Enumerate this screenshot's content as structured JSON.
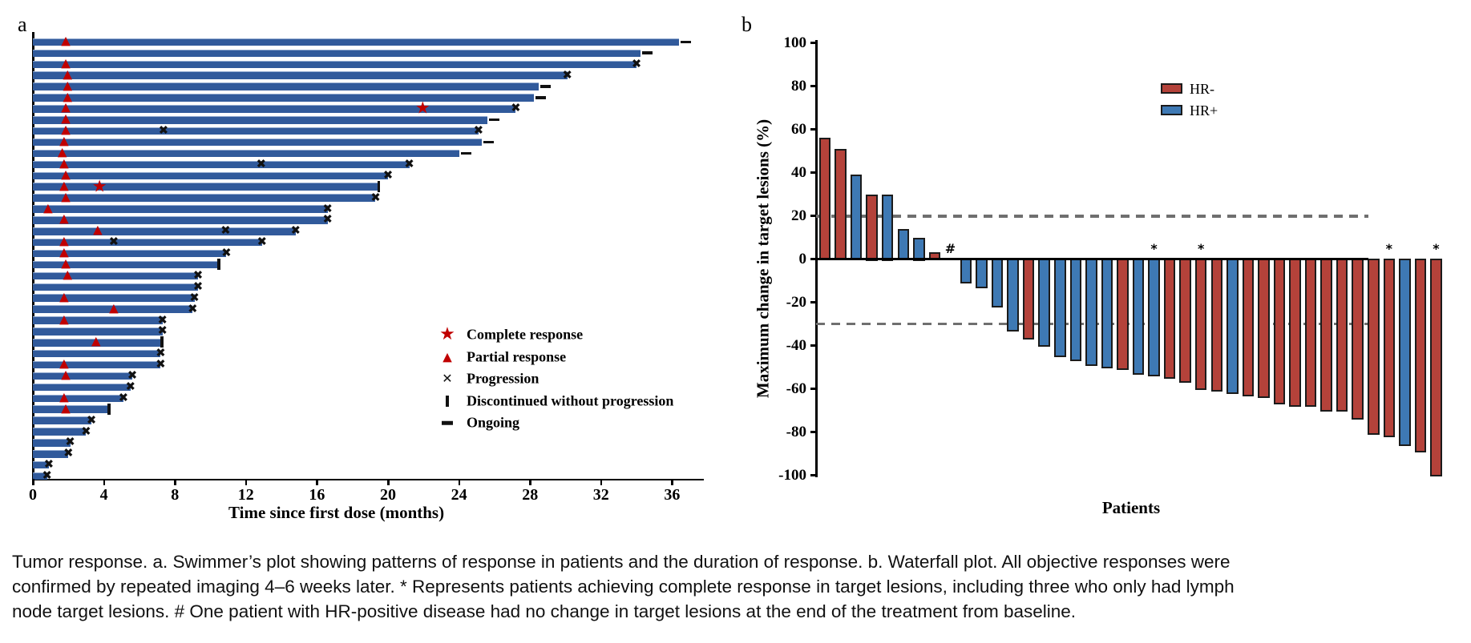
{
  "caption": {
    "lines": [
      "Tumor response. a. Swimmer’s plot showing patterns of response in patients and the duration of response. b. Waterfall plot. All objective responses were",
      "confirmed by repeated imaging 4–6 weeks later. * Represents patients achieving complete response in target lesions, including three who only had lymph",
      "node target lesions. # One patient with HR-positive disease had no change in target lesions at the end of the treatment from baseline."
    ]
  },
  "colors": {
    "swimmer_bar": "#315a9b",
    "marker_red": "#c00000",
    "marker_black": "#111111",
    "hr_negative": "#b4423a",
    "hr_positive": "#3e79b4",
    "bar_outline": "#1b1b1b",
    "reference_line": "#6f6f6f",
    "axis": "#000000"
  },
  "chart_data": [
    {
      "type": "bar",
      "orientation": "horizontal-swimmer",
      "panel_label": "a",
      "x_axis": {
        "title": "Time since first dose (months)",
        "ticks": [
          0,
          4,
          8,
          12,
          16,
          20,
          24,
          28,
          32,
          36
        ],
        "min": 0,
        "max": 37.8,
        "grid": false
      },
      "legend_position": "inside-lower-right",
      "legend": [
        {
          "symbol": "star",
          "label": "Complete response"
        },
        {
          "symbol": "triangle",
          "label": "Partial response"
        },
        {
          "symbol": "x",
          "label": "Progression"
        },
        {
          "symbol": "bar",
          "label": "Discontinued without progression"
        },
        {
          "symbol": "dash",
          "label": "Ongoing"
        }
      ],
      "patients": [
        {
          "months": 36.4,
          "end": "ongoing",
          "pr": 1.9,
          "cr": null,
          "mid_progression": null
        },
        {
          "months": 34.2,
          "end": "ongoing",
          "pr": null,
          "cr": null,
          "mid_progression": null
        },
        {
          "months": 34.0,
          "end": "progression",
          "pr": 1.9,
          "cr": null,
          "mid_progression": null
        },
        {
          "months": 30.1,
          "end": "progression",
          "pr": 2.0,
          "cr": null,
          "mid_progression": null
        },
        {
          "months": 28.5,
          "end": "ongoing",
          "pr": 2.0,
          "cr": null,
          "mid_progression": null
        },
        {
          "months": 28.2,
          "end": "ongoing",
          "pr": 2.0,
          "cr": null,
          "mid_progression": null
        },
        {
          "months": 27.2,
          "end": "progression",
          "pr": 1.9,
          "cr": 22.0,
          "mid_progression": null
        },
        {
          "months": 25.6,
          "end": "ongoing",
          "pr": 1.9,
          "cr": null,
          "mid_progression": null
        },
        {
          "months": 25.1,
          "end": "progression",
          "pr": 1.9,
          "cr": null,
          "mid_progression": 7.4
        },
        {
          "months": 25.3,
          "end": "ongoing",
          "pr": 1.8,
          "cr": null,
          "mid_progression": null
        },
        {
          "months": 24.0,
          "end": "ongoing",
          "pr": 1.7,
          "cr": null,
          "mid_progression": null
        },
        {
          "months": 21.2,
          "end": "progression",
          "pr": 1.8,
          "cr": null,
          "mid_progression": 12.9
        },
        {
          "months": 20.0,
          "end": "progression",
          "pr": 1.9,
          "cr": null,
          "mid_progression": null
        },
        {
          "months": 19.4,
          "end": "discontinued",
          "pr": 1.8,
          "cr": 3.8,
          "mid_progression": null
        },
        {
          "months": 19.3,
          "end": "progression",
          "pr": 1.9,
          "cr": null,
          "mid_progression": null
        },
        {
          "months": 16.6,
          "end": "progression",
          "pr": 0.9,
          "cr": null,
          "mid_progression": null
        },
        {
          "months": 16.6,
          "end": "progression",
          "pr": 1.8,
          "cr": null,
          "mid_progression": null
        },
        {
          "months": 14.8,
          "end": "progression",
          "pr": 3.7,
          "cr": null,
          "mid_progression": 10.9
        },
        {
          "months": 12.9,
          "end": "progression",
          "pr": 1.8,
          "cr": null,
          "mid_progression": 4.6
        },
        {
          "months": 10.9,
          "end": "progression",
          "pr": 1.8,
          "cr": null,
          "mid_progression": null
        },
        {
          "months": 10.4,
          "end": "discontinued",
          "pr": 1.9,
          "cr": null,
          "mid_progression": null
        },
        {
          "months": 9.3,
          "end": "progression",
          "pr": 2.0,
          "cr": null,
          "mid_progression": null
        },
        {
          "months": 9.3,
          "end": "progression",
          "pr": null,
          "cr": null,
          "mid_progression": null
        },
        {
          "months": 9.1,
          "end": "progression",
          "pr": 1.8,
          "cr": null,
          "mid_progression": null
        },
        {
          "months": 9.0,
          "end": "progression",
          "pr": 4.6,
          "cr": null,
          "mid_progression": null
        },
        {
          "months": 7.3,
          "end": "progression",
          "pr": 1.8,
          "cr": null,
          "mid_progression": null
        },
        {
          "months": 7.3,
          "end": "progression",
          "pr": null,
          "cr": null,
          "mid_progression": null
        },
        {
          "months": 7.2,
          "end": "discontinued",
          "pr": 3.6,
          "cr": null,
          "mid_progression": null
        },
        {
          "months": 7.2,
          "end": "progression",
          "pr": null,
          "cr": null,
          "mid_progression": null
        },
        {
          "months": 7.2,
          "end": "progression",
          "pr": 1.8,
          "cr": null,
          "mid_progression": null
        },
        {
          "months": 5.6,
          "end": "progression",
          "pr": 1.9,
          "cr": null,
          "mid_progression": null
        },
        {
          "months": 5.5,
          "end": "progression",
          "pr": null,
          "cr": null,
          "mid_progression": null
        },
        {
          "months": 5.1,
          "end": "progression",
          "pr": 1.8,
          "cr": null,
          "mid_progression": null
        },
        {
          "months": 4.2,
          "end": "discontinued",
          "pr": 1.9,
          "cr": null,
          "mid_progression": null
        },
        {
          "months": 3.3,
          "end": "progression",
          "pr": null,
          "cr": null,
          "mid_progression": null
        },
        {
          "months": 3.0,
          "end": "progression",
          "pr": null,
          "cr": null,
          "mid_progression": null
        },
        {
          "months": 2.1,
          "end": "progression",
          "pr": null,
          "cr": null,
          "mid_progression": null
        },
        {
          "months": 2.0,
          "end": "progression",
          "pr": null,
          "cr": null,
          "mid_progression": null
        },
        {
          "months": 0.9,
          "end": "progression",
          "pr": null,
          "cr": null,
          "mid_progression": null
        },
        {
          "months": 0.8,
          "end": "progression",
          "pr": null,
          "cr": null,
          "mid_progression": null
        }
      ]
    },
    {
      "type": "bar",
      "orientation": "vertical-waterfall",
      "panel_label": "b",
      "y_axis": {
        "title": "Maximum change in target lesions (%)",
        "min": -100,
        "max": 100,
        "step": 20
      },
      "x_axis": {
        "title": "Patients"
      },
      "reference_lines": [
        20,
        -30
      ],
      "legend_position": "upper-right",
      "legend": [
        {
          "label": "HR-",
          "group": "HR-"
        },
        {
          "label": "HR+",
          "group": "HR+"
        }
      ],
      "values": [
        56,
        51,
        39,
        30,
        30,
        14,
        10,
        3,
        0,
        -11,
        -13,
        -22,
        -33,
        -37,
        -40,
        -45,
        -47,
        -49,
        -50,
        -51,
        -53,
        -54,
        -55,
        -57,
        -60,
        -61,
        -62,
        -63,
        -64,
        -67,
        -68,
        -68,
        -70,
        -70,
        -74,
        -81,
        -82,
        -86,
        -89,
        -100
      ],
      "groups": [
        "HR-",
        "HR-",
        "HR+",
        "HR-",
        "HR+",
        "HR+",
        "HR+",
        "HR-",
        "HR+",
        "HR+",
        "HR+",
        "HR+",
        "HR+",
        "HR-",
        "HR+",
        "HR+",
        "HR+",
        "HR+",
        "HR+",
        "HR-",
        "HR+",
        "HR+",
        "HR-",
        "HR-",
        "HR-",
        "HR-",
        "HR+",
        "HR-",
        "HR-",
        "HR-",
        "HR-",
        "HR-",
        "HR-",
        "HR-",
        "HR-",
        "HR-",
        "HR-",
        "HR+",
        "HR-",
        "HR-"
      ],
      "annotations": [
        {
          "index": 8,
          "text": "#"
        },
        {
          "index": 21,
          "text": "*"
        },
        {
          "index": 24,
          "text": "*"
        },
        {
          "index": 36,
          "text": "*"
        },
        {
          "index": 39,
          "text": "*"
        }
      ]
    }
  ]
}
